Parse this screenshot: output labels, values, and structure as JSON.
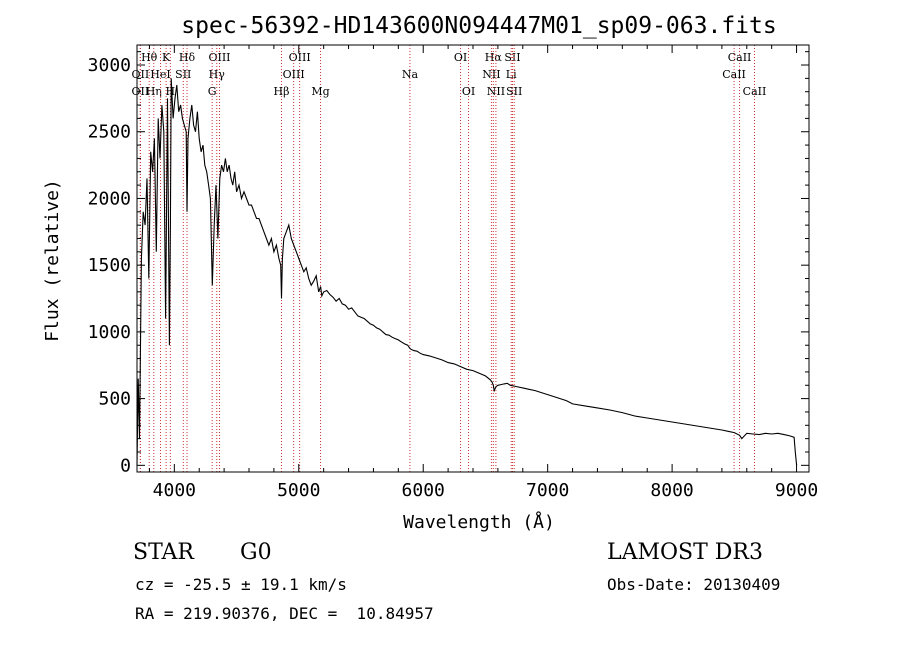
{
  "chart_data": {
    "type": "line",
    "title": "spec-56392-HD143600N094447M01_sp09-063.fits",
    "xlabel": "Wavelength (Å)",
    "ylabel": "Flux (relative)",
    "xlim": [
      3700,
      9100
    ],
    "ylim": [
      -50,
      3150
    ],
    "x_ticks": [
      4000,
      5000,
      6000,
      7000,
      8000,
      9000
    ],
    "y_ticks": [
      0,
      500,
      1000,
      1500,
      2000,
      2500,
      3000
    ],
    "line_color": "#000000",
    "marker_color": "#cc3333",
    "series": [
      {
        "name": "flux",
        "x": [
          3700,
          3710,
          3720,
          3735,
          3750,
          3765,
          3780,
          3795,
          3810,
          3825,
          3840,
          3855,
          3870,
          3885,
          3900,
          3915,
          3930,
          3945,
          3960,
          3968,
          3975,
          3990,
          4005,
          4020,
          4035,
          4050,
          4065,
          4080,
          4095,
          4102,
          4110,
          4125,
          4140,
          4155,
          4170,
          4185,
          4200,
          4215,
          4230,
          4245,
          4260,
          4275,
          4290,
          4305,
          4320,
          4335,
          4350,
          4365,
          4380,
          4395,
          4410,
          4425,
          4440,
          4455,
          4470,
          4485,
          4500,
          4520,
          4540,
          4560,
          4580,
          4600,
          4620,
          4640,
          4660,
          4680,
          4700,
          4720,
          4740,
          4760,
          4780,
          4800,
          4820,
          4840,
          4855,
          4861,
          4868,
          4880,
          4900,
          4920,
          4940,
          4960,
          4980,
          5000,
          5020,
          5040,
          5060,
          5080,
          5100,
          5120,
          5140,
          5160,
          5175,
          5185,
          5200,
          5225,
          5250,
          5275,
          5300,
          5325,
          5350,
          5375,
          5400,
          5425,
          5450,
          5475,
          5500,
          5525,
          5550,
          5575,
          5600,
          5625,
          5650,
          5675,
          5700,
          5725,
          5750,
          5775,
          5800,
          5825,
          5850,
          5875,
          5890,
          5900,
          5925,
          5950,
          5975,
          6000,
          6050,
          6100,
          6150,
          6200,
          6250,
          6300,
          6350,
          6400,
          6450,
          6500,
          6540,
          6555,
          6563,
          6570,
          6585,
          6600,
          6625,
          6650,
          6675,
          6700,
          6725,
          6750,
          6800,
          6850,
          6900,
          6950,
          7000,
          7050,
          7100,
          7150,
          7200,
          7300,
          7400,
          7500,
          7600,
          7700,
          7800,
          7900,
          8000,
          8100,
          8200,
          8300,
          8400,
          8450,
          8500,
          8542,
          8560,
          8600,
          8650,
          8700,
          8750,
          8800,
          8850,
          8900,
          8950,
          8980,
          8990,
          9000
        ],
        "y": [
          0,
          650,
          200,
          1550,
          1900,
          1800,
          2150,
          1400,
          2350,
          2200,
          2450,
          1600,
          2600,
          2300,
          2700,
          2500,
          1100,
          2750,
          900,
          1800,
          2900,
          2600,
          2750,
          2850,
          2650,
          2700,
          2600,
          2550,
          2500,
          1900,
          2450,
          2600,
          2700,
          2550,
          2500,
          2650,
          2450,
          2350,
          2400,
          2250,
          2200,
          2100,
          2000,
          1350,
          1800,
          2100,
          1700,
          2150,
          2250,
          2200,
          2300,
          2200,
          2250,
          2150,
          2100,
          2200,
          2050,
          2100,
          2000,
          2050,
          2000,
          1950,
          1950,
          1900,
          1850,
          1850,
          1800,
          1750,
          1700,
          1650,
          1700,
          1600,
          1650,
          1550,
          1500,
          1250,
          1550,
          1700,
          1750,
          1800,
          1700,
          1650,
          1600,
          1550,
          1500,
          1450,
          1480,
          1400,
          1350,
          1380,
          1420,
          1300,
          1340,
          1270,
          1300,
          1310,
          1280,
          1260,
          1230,
          1250,
          1210,
          1200,
          1170,
          1180,
          1150,
          1120,
          1110,
          1100,
          1080,
          1060,
          1050,
          1030,
          1020,
          1000,
          980,
          975,
          960,
          950,
          940,
          925,
          910,
          900,
          880,
          870,
          860,
          855,
          840,
          830,
          820,
          805,
          790,
          770,
          760,
          740,
          720,
          710,
          690,
          670,
          640,
          620,
          600,
          560,
          590,
          600,
          605,
          610,
          615,
          600,
          595,
          590,
          580,
          570,
          560,
          545,
          530,
          515,
          500,
          485,
          460,
          445,
          430,
          415,
          395,
          370,
          355,
          340,
          325,
          310,
          295,
          280,
          265,
          255,
          245,
          225,
          200,
          240,
          235,
          230,
          240,
          235,
          240,
          230,
          220,
          210,
          100,
          0
        ]
      }
    ],
    "line_markers": [
      {
        "label": "Hθ",
        "x": 3798,
        "row": 0
      },
      {
        "label": "OII",
        "x": 3727,
        "row": 1
      },
      {
        "label": "OII",
        "x": 3727,
        "row": 2
      },
      {
        "label": "Hη",
        "x": 3835,
        "row": 2
      },
      {
        "label": "HeI",
        "x": 3889,
        "row": 1
      },
      {
        "label": "K",
        "x": 3934,
        "row": 0
      },
      {
        "label": "H",
        "x": 3968,
        "row": 2
      },
      {
        "label": "Hδ",
        "x": 4102,
        "row": 0
      },
      {
        "label": "SII",
        "x": 4072,
        "row": 1
      },
      {
        "label": "OIII",
        "x": 4363,
        "row": 0
      },
      {
        "label": "Hγ",
        "x": 4341,
        "row": 1
      },
      {
        "label": "G",
        "x": 4304,
        "row": 2
      },
      {
        "label": "Hβ",
        "x": 4861,
        "row": 2
      },
      {
        "label": "OIII",
        "x": 5007,
        "row": 0
      },
      {
        "label": "OIII",
        "x": 4959,
        "row": 1
      },
      {
        "label": "Mg",
        "x": 5175,
        "row": 2
      },
      {
        "label": "Na",
        "x": 5893,
        "row": 1
      },
      {
        "label": "OI",
        "x": 6300,
        "row": 0
      },
      {
        "label": "OI",
        "x": 6364,
        "row": 2
      },
      {
        "label": "Hα",
        "x": 6563,
        "row": 0
      },
      {
        "label": "NII",
        "x": 6548,
        "row": 1
      },
      {
        "label": "NII",
        "x": 6584,
        "row": 2
      },
      {
        "label": "SII",
        "x": 6717,
        "row": 0
      },
      {
        "label": "Li",
        "x": 6707,
        "row": 1
      },
      {
        "label": "SII",
        "x": 6731,
        "row": 2
      },
      {
        "label": "CaII",
        "x": 8542,
        "row": 0
      },
      {
        "label": "CaII",
        "x": 8498,
        "row": 1
      },
      {
        "label": "CaII",
        "x": 8662,
        "row": 2
      }
    ]
  },
  "info": {
    "object_class": "STAR",
    "subclass": "G0",
    "survey": "LAMOST DR3",
    "redshift_line": "cz = -25.5 ± 19.1 km/s",
    "obs_date_line": "Obs-Date: 20130409",
    "coords_line": "RA = 219.90376, DEC =  10.84957"
  }
}
